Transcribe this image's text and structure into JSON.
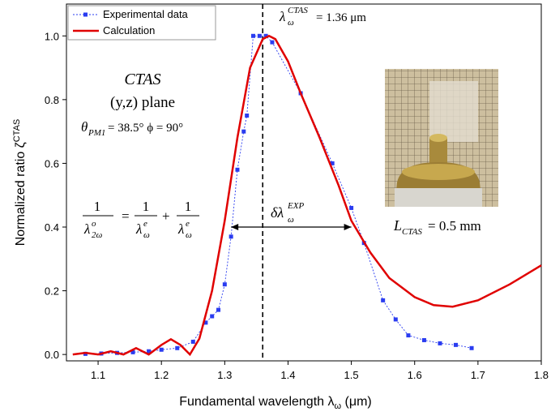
{
  "chart_data": {
    "type": "line",
    "x_label": [
      "Fundamental wavelength λ",
      "ω",
      " (μm)"
    ],
    "y_label": [
      "Normalized ratio ζ",
      "CTAS"
    ],
    "xlim": [
      1.05,
      1.8
    ],
    "ylim": [
      -0.02,
      1.1
    ],
    "xticks": [
      1.1,
      1.2,
      1.3,
      1.4,
      1.5,
      1.6,
      1.7,
      1.8
    ],
    "yticks": [
      {
        "value": 0,
        "label": "0.0"
      },
      0.2,
      0.4,
      0.6,
      0.8,
      {
        "value": 1,
        "label": "1.0"
      }
    ],
    "legend": "upper left",
    "series": [
      {
        "name": "Experimental data",
        "color": "#2a3cf0",
        "line_style": "dotted",
        "marker": "square",
        "x": [
          1.08,
          1.105,
          1.13,
          1.155,
          1.18,
          1.2,
          1.225,
          1.25,
          1.27,
          1.28,
          1.29,
          1.3,
          1.31,
          1.32,
          1.33,
          1.335,
          1.345,
          1.355,
          1.365,
          1.375,
          1.42,
          1.47,
          1.5,
          1.52,
          1.55,
          1.57,
          1.59,
          1.615,
          1.64,
          1.665,
          1.69
        ],
        "values": [
          0.002,
          0.003,
          0.005,
          0.007,
          0.01,
          0.015,
          0.02,
          0.04,
          0.1,
          0.12,
          0.14,
          0.22,
          0.37,
          0.58,
          0.7,
          0.75,
          1.0,
          1.0,
          1.0,
          0.98,
          0.82,
          0.6,
          0.46,
          0.35,
          0.17,
          0.11,
          0.06,
          0.045,
          0.035,
          0.03,
          0.02
        ]
      },
      {
        "name": "Calculation",
        "color": "#e00000",
        "line_style": "solid",
        "marker": "none",
        "x": [
          1.06,
          1.08,
          1.1,
          1.12,
          1.14,
          1.16,
          1.18,
          1.2,
          1.215,
          1.23,
          1.245,
          1.26,
          1.28,
          1.3,
          1.32,
          1.34,
          1.36,
          1.37,
          1.38,
          1.4,
          1.42,
          1.45,
          1.48,
          1.5,
          1.53,
          1.56,
          1.6,
          1.63,
          1.66,
          1.7,
          1.75,
          1.8
        ],
        "values": [
          0,
          0.005,
          0,
          0.01,
          0,
          0.02,
          0,
          0.03,
          0.048,
          0.03,
          0,
          0.05,
          0.2,
          0.42,
          0.68,
          0.9,
          0.99,
          1.0,
          0.99,
          0.92,
          0.82,
          0.68,
          0.53,
          0.42,
          0.32,
          0.24,
          0.18,
          0.155,
          0.15,
          0.17,
          0.22,
          0.28
        ]
      }
    ],
    "vline": 1.36,
    "arrow": {
      "x": [
        1.31,
        1.5
      ],
      "y": 0.4
    },
    "annotations": {
      "peak": [
        "λ",
        "ω",
        "CTAS",
        " = 1.36 μm"
      ],
      "crystal": "CTAS",
      "plane": "(y,z) plane",
      "angles": [
        "θ",
        "PM1",
        " = 38.5° ϕ = 90°"
      ],
      "width": [
        "δλ",
        "ω",
        "EXP"
      ],
      "length": [
        "L",
        "CTAS",
        " = 0.5 mm"
      ],
      "equation": {
        "lhs_num": "1",
        "lhs_den": [
          "λ",
          "2ω",
          "o"
        ],
        "eq": "=",
        "t1_num": "1",
        "t1_den": [
          "λ",
          "ω",
          "e"
        ],
        "plus": "+",
        "t2_num": "1",
        "t2_den": [
          "λ",
          "ω",
          "e"
        ]
      }
    }
  }
}
